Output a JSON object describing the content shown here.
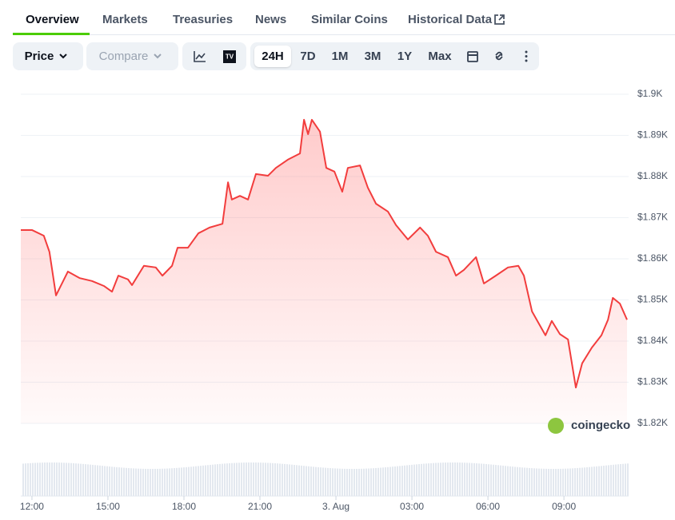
{
  "tabs": [
    "Overview",
    "Markets",
    "Treasuries",
    "News",
    "Similar Coins",
    "Historical Data"
  ],
  "toolbar": {
    "price": "Price",
    "compare": "Compare",
    "ranges": [
      "24H",
      "7D",
      "1M",
      "3M",
      "1Y",
      "Max"
    ]
  },
  "watermark": "coingecko",
  "chart_data": {
    "type": "area",
    "x": [
      -0.44,
      0,
      0.47,
      0.69,
      0.95,
      1.42,
      1.89,
      2.37,
      2.84,
      3.16,
      3.41,
      3.79,
      3.95,
      4.42,
      4.89,
      5.15,
      5.53,
      5.75,
      6.16,
      6.57,
      7.01,
      7.52,
      7.74,
      7.89,
      8.21,
      8.53,
      8.84,
      9.32,
      9.63,
      10.1,
      10.58,
      10.74,
      10.9,
      11.05,
      11.37,
      11.62,
      11.94,
      12.25,
      12.47,
      12.95,
      13.26,
      13.58,
      14.05,
      14.37,
      14.84,
      15.32,
      15.63,
      15.95,
      16.42,
      16.74,
      17.05,
      17.53,
      17.84,
      18.31,
      18.79,
      19.2,
      19.42,
      19.74,
      20.27,
      20.52,
      20.84,
      21.16,
      21.47,
      21.72,
      22.1,
      22.48,
      22.74,
      22.93,
      23.21,
      23.49
    ],
    "values": [
      1867.0,
      1867.0,
      1865.6,
      1861.7,
      1851.1,
      1856.9,
      1855.3,
      1854.6,
      1853.4,
      1852.0,
      1855.9,
      1855.0,
      1853.6,
      1858.3,
      1857.9,
      1855.9,
      1858.3,
      1862.7,
      1862.7,
      1866.2,
      1867.6,
      1868.5,
      1878.6,
      1874.4,
      1875.3,
      1874.4,
      1880.6,
      1880.2,
      1882.1,
      1884.1,
      1885.6,
      1893.8,
      1890.3,
      1893.8,
      1890.9,
      1882.1,
      1881.2,
      1876.3,
      1882.1,
      1882.7,
      1877.3,
      1873.4,
      1871.5,
      1868.2,
      1864.7,
      1867.6,
      1865.6,
      1861.7,
      1860.4,
      1855.9,
      1857.3,
      1860.4,
      1854.0,
      1855.9,
      1857.9,
      1858.3,
      1855.9,
      1847.2,
      1841.4,
      1844.9,
      1841.7,
      1840.4,
      1828.7,
      1834.6,
      1838.4,
      1841.4,
      1845.2,
      1850.5,
      1849.1,
      1845.2
    ],
    "color": "#f23d3d",
    "xlim": [
      -0.44,
      23.49
    ],
    "xticks": [
      {
        "value": 0,
        "label": "12:00"
      },
      {
        "value": 3,
        "label": "15:00"
      },
      {
        "value": 6,
        "label": "18:00"
      },
      {
        "value": 9,
        "label": "21:00"
      },
      {
        "value": 12,
        "label": "3. Aug"
      },
      {
        "value": 15,
        "label": "03:00"
      },
      {
        "value": 18,
        "label": "06:00"
      },
      {
        "value": 21,
        "label": "09:00"
      }
    ],
    "ylim": [
      1820,
      1900
    ],
    "yticks": [
      {
        "value": 1900,
        "label": "$1.9K"
      },
      {
        "value": 1890,
        "label": "$1.89K"
      },
      {
        "value": 1880,
        "label": "$1.88K"
      },
      {
        "value": 1870,
        "label": "$1.87K"
      },
      {
        "value": 1860,
        "label": "$1.86K"
      },
      {
        "value": 1850,
        "label": "$1.85K"
      },
      {
        "value": 1840,
        "label": "$1.84K"
      },
      {
        "value": 1830,
        "label": "$1.83K"
      },
      {
        "value": 1820,
        "label": "$1.82K"
      }
    ],
    "grid": true
  }
}
